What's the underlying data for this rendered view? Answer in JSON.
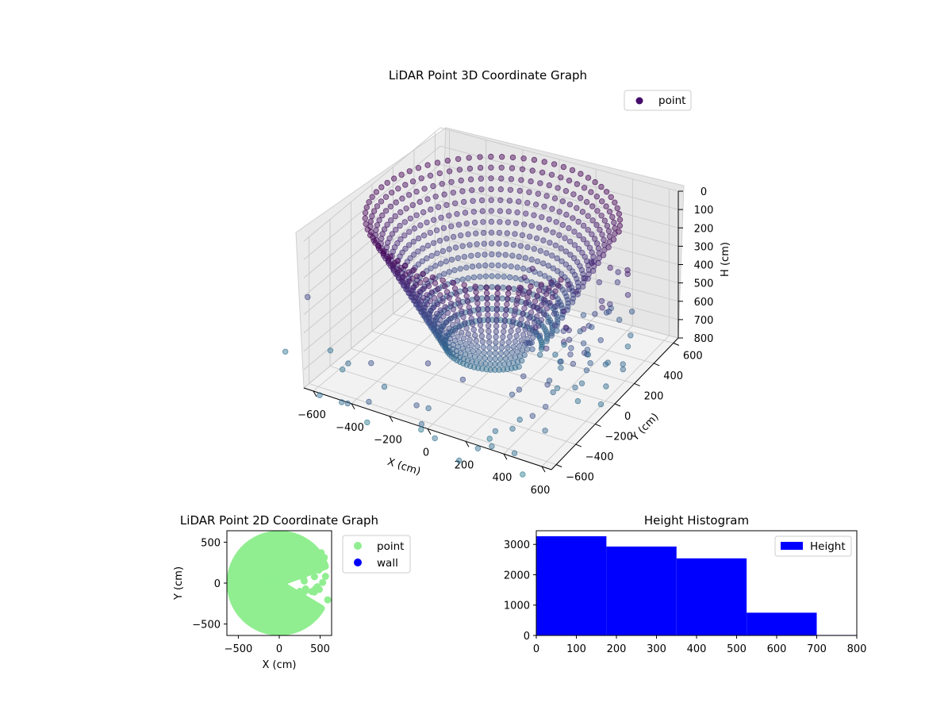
{
  "chart_data": [
    {
      "type": "scatter",
      "projection": "3d",
      "title": "LiDAR Point 3D Coordinate Graph",
      "xlabel": "X (cm)",
      "ylabel": "Y (cm)",
      "zlabel": "H (cm)",
      "xlim": [
        -650,
        650
      ],
      "ylim": [
        -650,
        650
      ],
      "zlim": [
        800,
        0
      ],
      "zaxis_inverted": true,
      "x_ticks": [
        "−600",
        "−400",
        "−200",
        "0",
        "200",
        "400",
        "600"
      ],
      "y_ticks": [
        "−600",
        "−400",
        "−200",
        "0",
        "200",
        "400",
        "600"
      ],
      "z_ticks": [
        "0",
        "100",
        "200",
        "300",
        "400",
        "500",
        "600",
        "700",
        "800"
      ],
      "grid": true,
      "colormap": "viridis",
      "legend": {
        "position": "top-right",
        "entries": [
          {
            "label": "point",
            "color": "#440c6b"
          }
        ]
      },
      "series": [
        {
          "name": "point",
          "description_of_shape": "dense circular wall ring of radius ~600 cm, open toward +X/+Y, heights 0 to ~700 cm, plus scattered points outside the ring"
        }
      ]
    },
    {
      "type": "scatter",
      "title": "LiDAR Point 2D Coordinate Graph",
      "xlabel": "X (cm)",
      "ylabel": "Y (cm)",
      "xlim": [
        -640,
        640
      ],
      "ylim": [
        -640,
        640
      ],
      "x_ticks": [
        "−500",
        "0",
        "500"
      ],
      "y_ticks": [
        "500",
        "0",
        "−500"
      ],
      "legend": {
        "position": "right",
        "entries": [
          {
            "label": "point",
            "color": "#90ee90"
          },
          {
            "label": "wall",
            "color": "#0000ff"
          }
        ]
      }
    },
    {
      "type": "bar",
      "subtype": "histogram",
      "title": "Height Histogram",
      "xlim": [
        0,
        800
      ],
      "ylim": [
        0,
        3450
      ],
      "bin_edges": [
        0,
        175,
        350,
        525,
        700,
        875
      ],
      "values": [
        3270,
        2930,
        2540,
        750,
        15
      ],
      "x_ticks": [
        "0",
        "100",
        "200",
        "300",
        "400",
        "500",
        "600",
        "700",
        "800"
      ],
      "y_ticks": [
        "0",
        "1000",
        "2000",
        "3000"
      ],
      "color": "#0000ff",
      "legend": {
        "position": "top-right",
        "entries": [
          {
            "label": "Height",
            "color": "#0000ff"
          }
        ]
      }
    }
  ]
}
